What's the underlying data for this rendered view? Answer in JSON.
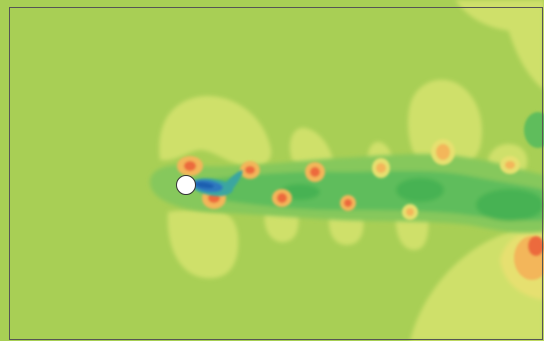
{
  "colors": {
    "background": "#a8cf55",
    "frame": "#555555",
    "light_yellow": "#cfe06a",
    "yellow": "#e6e070",
    "orange": "#f3b65a",
    "red": "#ec6a3e",
    "light_green": "#86c85c",
    "green": "#5fbd5b",
    "dark_green": "#46b253",
    "teal": "#3aa6a0",
    "blue": "#2e78bf",
    "deep_blue": "#1f5fb0",
    "cylinder": "#ffffff"
  },
  "icons": {
    "cylinder": "white-circle-obstacle"
  }
}
